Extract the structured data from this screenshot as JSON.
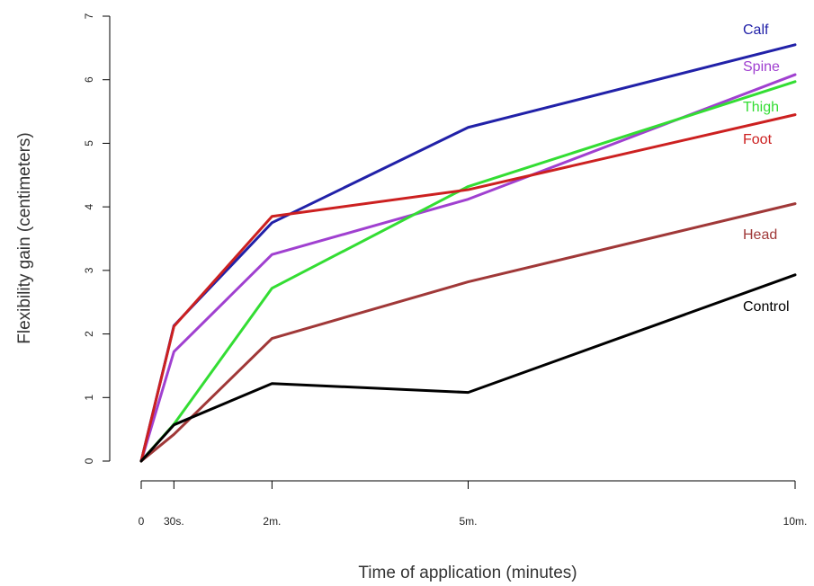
{
  "chart_data": {
    "type": "line",
    "title": "",
    "xlabel": "Time of application (minutes)",
    "ylabel": "Flexibility gain (centimeters)",
    "x_ticks": [
      {
        "x": 0,
        "label": "0"
      },
      {
        "x": 0.5,
        "label": "30s."
      },
      {
        "x": 2,
        "label": "2m."
      },
      {
        "x": 5,
        "label": "5m."
      },
      {
        "x": 10,
        "label": "10m."
      }
    ],
    "y_ticks": [
      0,
      1,
      2,
      3,
      4,
      5,
      6,
      7
    ],
    "xlim": [
      0,
      10
    ],
    "ylim": [
      0,
      7
    ],
    "grid": false,
    "legend": "labels at line ends",
    "x": [
      0,
      0.5,
      2,
      5,
      10
    ],
    "series": [
      {
        "name": "Calf",
        "color": "#2121a8",
        "values": [
          0,
          2.13,
          3.75,
          5.25,
          6.55
        ]
      },
      {
        "name": "Spine",
        "color": "#a040d0",
        "values": [
          0,
          1.72,
          3.25,
          4.12,
          6.08
        ]
      },
      {
        "name": "Thigh",
        "color": "#33dd33",
        "values": [
          0,
          0.58,
          2.72,
          4.32,
          5.97
        ]
      },
      {
        "name": "Foot",
        "color": "#cc2020",
        "values": [
          0,
          2.12,
          3.85,
          4.27,
          5.45
        ]
      },
      {
        "name": "Head",
        "color": "#a03838",
        "values": [
          0,
          0.42,
          1.93,
          2.82,
          4.05
        ]
      },
      {
        "name": "Control",
        "color": "#000000",
        "values": [
          0,
          0.57,
          1.22,
          1.08,
          2.93
        ]
      }
    ]
  }
}
